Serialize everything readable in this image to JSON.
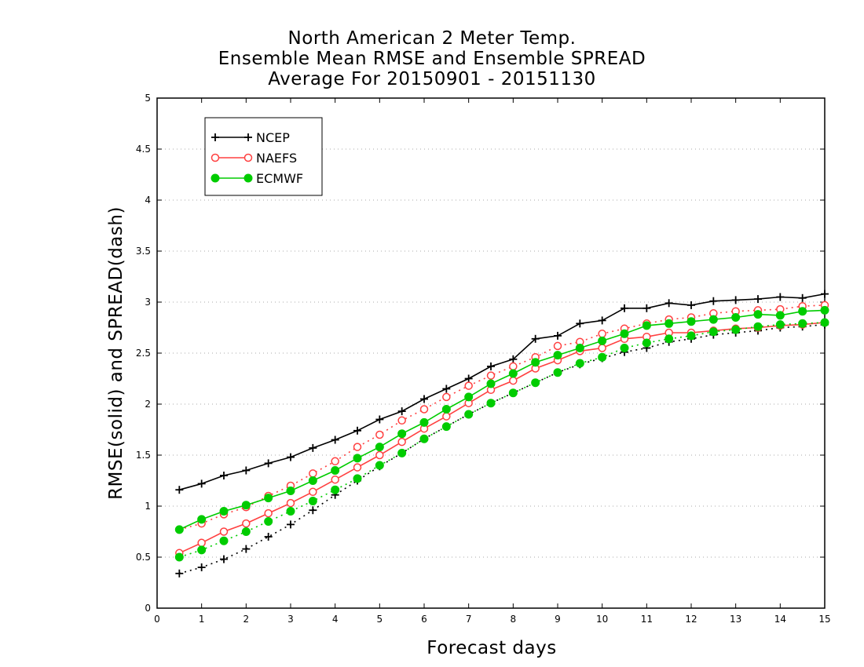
{
  "chart_data": {
    "type": "line",
    "title_lines": [
      "North American 2 Meter Temp.",
      "Ensemble Mean RMSE and Ensemble SPREAD",
      "Average For 20150901 - 20151130"
    ],
    "xlabel": "Forecast days",
    "ylabel": "RMSE(solid) and SPREAD(dash)",
    "xlim": [
      0,
      15
    ],
    "ylim": [
      0,
      5
    ],
    "xticks": [
      "0",
      "1",
      "2",
      "3",
      "4",
      "5",
      "6",
      "7",
      "8",
      "9",
      "10",
      "11",
      "12",
      "13",
      "14",
      "15"
    ],
    "yticks": [
      "0",
      "0.5",
      "1",
      "1.5",
      "2",
      "2.5",
      "3",
      "3.5",
      "4",
      "4.5",
      "5"
    ],
    "grid": "dotted horizontal",
    "legend_position": "top-left",
    "x": [
      0.5,
      1,
      1.5,
      2,
      2.5,
      3,
      3.5,
      4,
      4.5,
      5,
      5.5,
      6,
      6.5,
      7,
      7.5,
      8,
      8.5,
      9,
      9.5,
      10,
      10.5,
      11,
      11.5,
      12,
      12.5,
      13,
      13.5,
      14,
      14.5,
      15
    ],
    "series": [
      {
        "name": "NCEP",
        "color": "#000000",
        "marker": "plus",
        "rmse": [
          1.16,
          1.22,
          1.3,
          1.35,
          1.42,
          1.48,
          1.57,
          1.65,
          1.74,
          1.85,
          1.93,
          2.05,
          2.15,
          2.25,
          2.37,
          2.44,
          2.64,
          2.67,
          2.79,
          2.82,
          2.94,
          2.94,
          2.99,
          2.97,
          3.01,
          3.02,
          3.03,
          3.05,
          3.04,
          3.08
        ],
        "spread": [
          0.34,
          0.4,
          0.48,
          0.58,
          0.7,
          0.82,
          0.96,
          1.11,
          1.25,
          1.39,
          1.52,
          1.66,
          1.78,
          1.9,
          2.01,
          2.11,
          2.21,
          2.31,
          2.39,
          2.45,
          2.51,
          2.55,
          2.61,
          2.64,
          2.68,
          2.7,
          2.72,
          2.75,
          2.76,
          2.78
        ]
      },
      {
        "name": "NAEFS",
        "color": "#ff4040",
        "marker": "open-circle",
        "rmse": [
          0.54,
          0.64,
          0.75,
          0.83,
          0.93,
          1.03,
          1.14,
          1.26,
          1.38,
          1.5,
          1.63,
          1.76,
          1.88,
          2.01,
          2.14,
          2.23,
          2.35,
          2.43,
          2.52,
          2.55,
          2.64,
          2.66,
          2.7,
          2.7,
          2.72,
          2.74,
          2.75,
          2.77,
          2.78,
          2.8
        ],
        "spread": [
          0.77,
          0.83,
          0.92,
          0.99,
          1.1,
          1.2,
          1.32,
          1.44,
          1.58,
          1.7,
          1.84,
          1.95,
          2.07,
          2.18,
          2.28,
          2.37,
          2.46,
          2.57,
          2.61,
          2.69,
          2.74,
          2.79,
          2.83,
          2.85,
          2.89,
          2.91,
          2.92,
          2.93,
          2.96,
          2.97
        ]
      },
      {
        "name": "ECMWF",
        "color": "#00cc00",
        "marker": "filled-circle",
        "rmse": [
          0.77,
          0.87,
          0.95,
          1.01,
          1.08,
          1.15,
          1.25,
          1.35,
          1.47,
          1.58,
          1.71,
          1.82,
          1.95,
          2.07,
          2.2,
          2.3,
          2.41,
          2.48,
          2.55,
          2.62,
          2.69,
          2.77,
          2.79,
          2.81,
          2.83,
          2.85,
          2.88,
          2.87,
          2.91,
          2.92
        ],
        "spread": [
          0.5,
          0.57,
          0.66,
          0.75,
          0.85,
          0.95,
          1.05,
          1.16,
          1.27,
          1.4,
          1.52,
          1.66,
          1.78,
          1.9,
          2.01,
          2.11,
          2.21,
          2.31,
          2.4,
          2.46,
          2.55,
          2.6,
          2.64,
          2.67,
          2.71,
          2.73,
          2.76,
          2.78,
          2.79,
          2.8
        ]
      }
    ]
  }
}
